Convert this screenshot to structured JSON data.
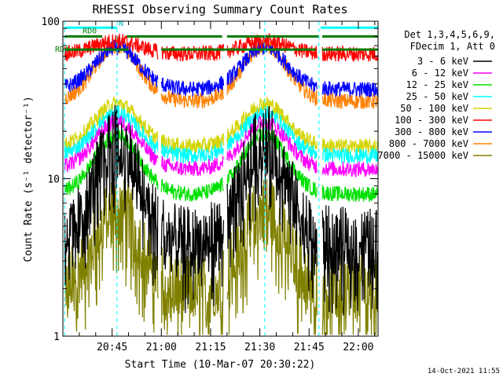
{
  "chart_data": {
    "type": "line",
    "title": "RHESSI Observing Summary Count Rates",
    "xlabel": "Start Time (10-Mar-07 20:30:22)",
    "ylabel": "Count Rate (s⁻¹ detector⁻¹)",
    "y_scale": "log",
    "ylim": [
      1,
      100
    ],
    "y_ticks": [
      "1",
      "10",
      "100"
    ],
    "x_ticks": [
      "20:45",
      "21:00",
      "21:15",
      "21:30",
      "21:45",
      "22:00"
    ],
    "x_range_min": [
      0,
      96
    ],
    "x_tick_min": [
      15,
      30,
      45,
      60,
      75,
      90
    ],
    "legend_header": [
      "Det 1,3,4,5,6,9,",
      "FDecim 1, Att 0"
    ],
    "legend_position": "right",
    "series": [
      {
        "name": "3 - 6 keV",
        "color": "#000000",
        "valley": 4.0,
        "peak": 18
      },
      {
        "name": "6 - 12 keV",
        "color": "#ff00ff",
        "valley": 11.5,
        "peak": 23
      },
      {
        "name": "12 - 25 keV",
        "color": "#00e000",
        "valley": 8.0,
        "peak": 19
      },
      {
        "name": "25 - 50 keV",
        "color": "#00ffff",
        "valley": 14.0,
        "peak": 26
      },
      {
        "name": "50 - 100 keV",
        "color": "#d4d400",
        "valley": 16.0,
        "peak": 30
      },
      {
        "name": "100 - 300 keV",
        "color": "#ff0000",
        "valley": 62,
        "peak": 75
      },
      {
        "name": "300 - 800 keV",
        "color": "#0000ff",
        "valley": 37,
        "peak": 68
      },
      {
        "name": "800 - 7000 keV",
        "color": "#ff8000",
        "valley": 31,
        "peak": 70
      },
      {
        "name": "7000 - 15000 keV",
        "color": "#808000",
        "valley": 2.0,
        "peak": 6.5
      }
    ],
    "annotations": {
      "flag_labels": [
        "RD0",
        "RD4",
        "N"
      ],
      "footer_date": "14-Oct-2021 11:55"
    }
  }
}
